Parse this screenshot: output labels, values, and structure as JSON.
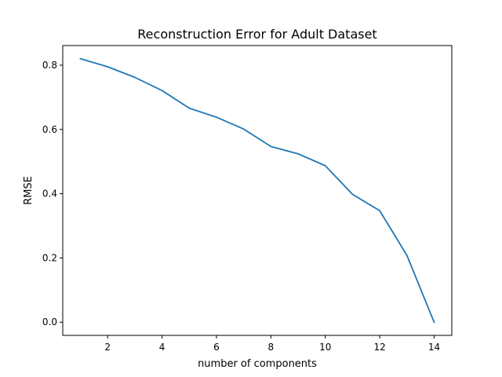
{
  "chart_data": {
    "type": "line",
    "title": "Reconstruction Error for Adult Dataset",
    "xlabel": "number of components",
    "ylabel": "RMSE",
    "xlim": [
      0.35,
      14.65
    ],
    "ylim": [
      -0.041,
      0.861
    ],
    "xticks": [
      2,
      4,
      6,
      8,
      10,
      12,
      14
    ],
    "yticks": [
      0.0,
      0.2,
      0.4,
      0.6,
      0.8
    ],
    "ytick_labels": [
      "0.0",
      "0.2",
      "0.4",
      "0.6",
      "0.8"
    ],
    "grid": false,
    "series": [
      {
        "color": "#1f77b4",
        "x": [
          1,
          2,
          3,
          4,
          5,
          6,
          7,
          8,
          9,
          10,
          11,
          12,
          13,
          14
        ],
        "y": [
          0.82,
          0.795,
          0.762,
          0.721,
          0.666,
          0.638,
          0.601,
          0.547,
          0.524,
          0.487,
          0.398,
          0.347,
          0.208,
          0.0
        ]
      }
    ]
  }
}
